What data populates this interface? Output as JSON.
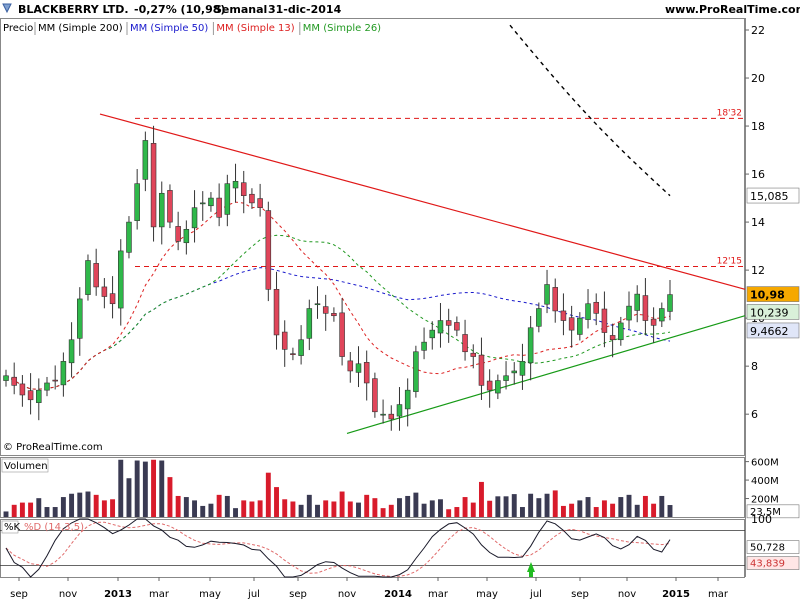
{
  "header": {
    "instrument": "BLACKBERRY LTD.",
    "change": "-0,27% (10,98)",
    "period": "Semanal",
    "date": "31-dic-2014",
    "site": "www.ProRealTime.com"
  },
  "legend": {
    "price": "Precio",
    "items": [
      {
        "label": "MM (Simple 200)",
        "color": "#000000"
      },
      {
        "label": "MM (Simple 50)",
        "color": "#1a1acc"
      },
      {
        "label": "MM (Simple 13)",
        "color": "#dd2222"
      },
      {
        "label": "MM (Simple 26)",
        "color": "#229922"
      }
    ]
  },
  "copyright": "© ProRealTime.com",
  "volume_label": "Volumen",
  "stoch_label_k": "%K",
  "stoch_label_d": "%D (14,3,5)",
  "colors": {
    "up": "#2fb84a",
    "down": "#e0455a",
    "vol_up": "#3a3a52",
    "vol_down": "#d81b2b",
    "price_box": "#f6a800",
    "ma13_box": "#d9f0d9",
    "trend_red": "#e01818",
    "trend_green": "#169a16",
    "stoch_k": "#1a1a2a",
    "stoch_d_fill": "#f3b3b3",
    "stoch_k_fill": "#a8b2e0"
  },
  "chart_data": [
    {
      "type": "candlestick",
      "title": "BLACKBERRY LTD. Semanal",
      "x_ticks": [
        "sep",
        "nov",
        "2013",
        "mar",
        "may",
        "jul",
        "sep",
        "nov",
        "2014",
        "mar",
        "may",
        "jul",
        "sep",
        "nov",
        "2015",
        "mar"
      ],
      "y_ticks": [
        6,
        8,
        10,
        12,
        14,
        16,
        18,
        20,
        22
      ],
      "ylim": [
        4.3,
        22.5
      ],
      "last_price_label": "10,98",
      "ma_labels": [
        {
          "name": "MM (Simple 13)",
          "value": "10,239"
        },
        {
          "name": "MM (Simple 50)",
          "value": "9,4662"
        },
        {
          "name": "MM (Simple 200)",
          "value": "15,085"
        }
      ],
      "horizontal_levels": [
        {
          "label": "18'32",
          "value": 18.32
        },
        {
          "label": "12'15",
          "value": 12.15
        }
      ],
      "trendlines": [
        {
          "name": "resistance",
          "from": [
            0.0,
            18.5
          ],
          "to": [
            1.0,
            11.2
          ]
        },
        {
          "name": "support",
          "from": [
            0.0,
            5.2
          ],
          "to": [
            1.0,
            10.1
          ]
        }
      ],
      "series_close": [
        7.6,
        7.2,
        6.8,
        6.6,
        7.0,
        7.3,
        7.4,
        8.2,
        9.1,
        10.8,
        12.4,
        11.3,
        10.9,
        10.6,
        12.8,
        14.0,
        15.6,
        17.4,
        13.8,
        15.2,
        14.0,
        13.2,
        13.7,
        14.6,
        14.8,
        15.0,
        14.2,
        15.6,
        15.7,
        15.1,
        14.8,
        14.6,
        11.2,
        9.3,
        8.7,
        8.5,
        9.1,
        10.4,
        10.6,
        10.2,
        10.1,
        8.4,
        7.8,
        8.1,
        7.3,
        6.1,
        6.0,
        5.8,
        6.4,
        7.0,
        8.6,
        9.0,
        9.5,
        9.9,
        9.7,
        9.5,
        8.6,
        8.4,
        7.2,
        7.0,
        7.4,
        7.6,
        7.8,
        8.2,
        9.6,
        10.4,
        11.4,
        10.3,
        9.9,
        9.5,
        10.0,
        10.6,
        10.2,
        9.4,
        9.1,
        9.8,
        10.5,
        11.0,
        9.9,
        9.7,
        10.4,
        10.98
      ]
    },
    {
      "type": "bar",
      "title": "Volumen",
      "y_ticks": [
        "200M",
        "400M",
        "600M"
      ],
      "last_label": "23,5M"
    },
    {
      "type": "line",
      "title": "%K %D (14,3,5)",
      "y_ticks": [
        100
      ],
      "ylim": [
        0,
        100
      ],
      "labels": [
        {
          "name": "%K",
          "value": "50,728"
        },
        {
          "name": "%D",
          "value": "43,839"
        }
      ]
    }
  ]
}
